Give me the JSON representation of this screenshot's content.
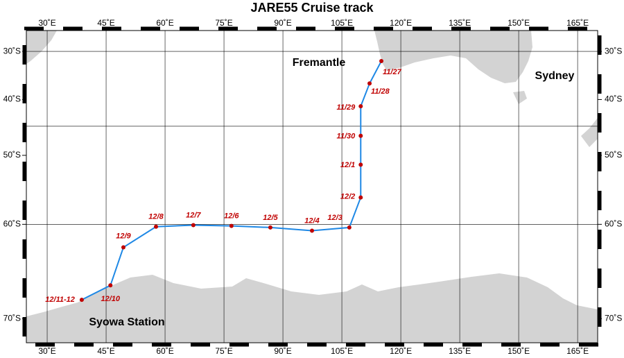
{
  "title": "JARE55 Cruise track",
  "map": {
    "projection": "mercator",
    "lonlim": [
      24.7,
      170.1
    ],
    "latlim": [
      -72.0,
      -25.3
    ],
    "lonticks": [
      {
        "value": 30,
        "label": "30˚E"
      },
      {
        "value": 45,
        "label": "45˚E"
      },
      {
        "value": 60,
        "label": "60˚E"
      },
      {
        "value": 75,
        "label": "75˚E"
      },
      {
        "value": 90,
        "label": "90˚E"
      },
      {
        "value": 105,
        "label": "105˚E"
      },
      {
        "value": 120,
        "label": "120˚E"
      },
      {
        "value": 135,
        "label": "135˚E"
      },
      {
        "value": 150,
        "label": "150˚E"
      },
      {
        "value": 165,
        "label": "165˚E"
      }
    ],
    "latticks": [
      {
        "value": -30,
        "label": "30˚S"
      },
      {
        "value": -40,
        "label": "40˚S"
      },
      {
        "value": -50,
        "label": "50˚S"
      },
      {
        "value": -60,
        "label": "60˚S"
      },
      {
        "value": -70,
        "label": "70˚S"
      }
    ],
    "latgrid": [
      -30,
      -45,
      -60
    ],
    "track_color": "#1e88e5",
    "station_color": "#c00000"
  },
  "places": [
    "Fremantle",
    "Sydney",
    "Syowa Station"
  ],
  "stations": {
    "labels": [
      "11/27",
      "11/28",
      "11/29",
      "11/30",
      "12/1",
      "12/2",
      "12/3",
      "12/4",
      "12/5",
      "12/6",
      "12/7",
      "12/8",
      "12/9",
      "12/10",
      "12/11-12"
    ],
    "lon": [
      115.05,
      112.05,
      109.8,
      109.8,
      109.8,
      109.8,
      106.9,
      97.4,
      86.8,
      76.9,
      67.2,
      57.7,
      49.4,
      46.1,
      38.8
    ],
    "lat": [
      -32.1,
      -36.8,
      -41.3,
      -46.7,
      -51.5,
      -56.4,
      -60.4,
      -60.8,
      -60.4,
      -60.2,
      -60.1,
      -60.3,
      -62.8,
      -66.9,
      -68.3
    ]
  }
}
